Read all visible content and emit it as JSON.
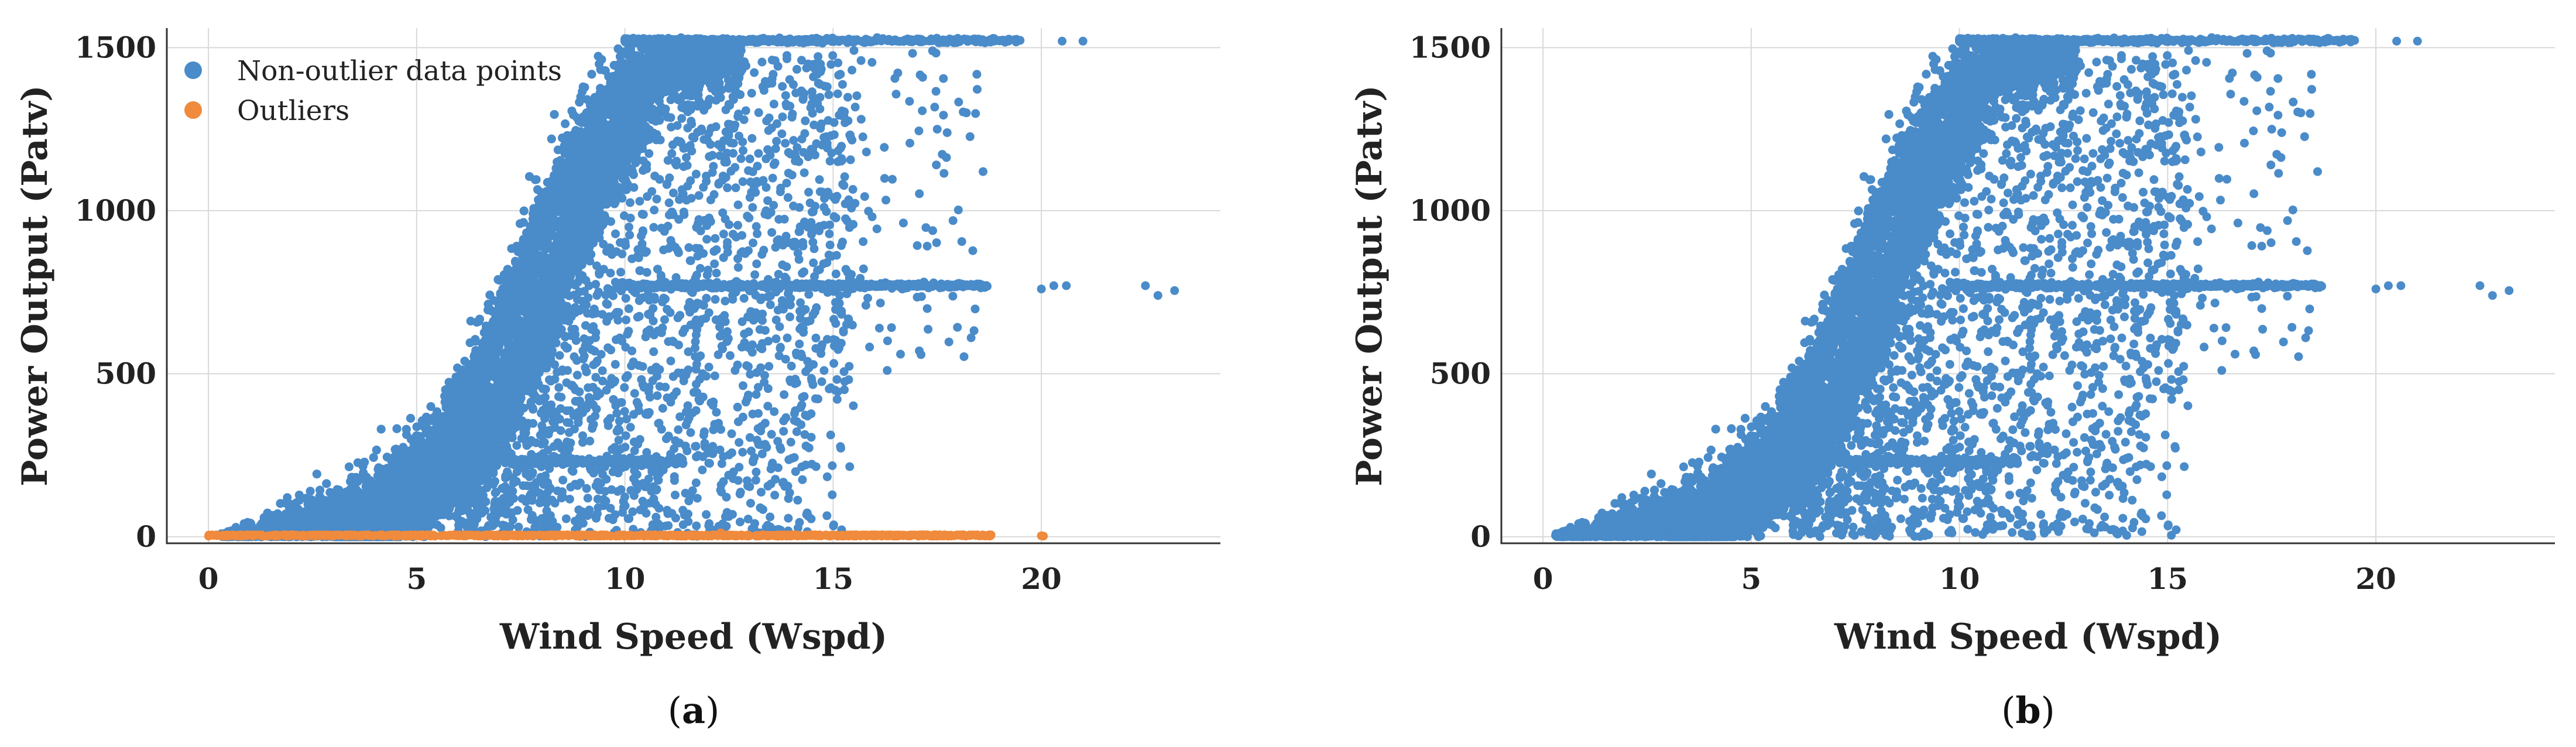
{
  "chart_data": [
    {
      "type": "scatter",
      "panel_label": "a",
      "xlabel": "Wind Speed (Wspd)",
      "ylabel": "Power Output (Patv)",
      "xlim": [
        -1,
        24.3
      ],
      "ylim": [
        -20,
        1560
      ],
      "x_ticks": [
        "0",
        "5",
        "10",
        "15",
        "20"
      ],
      "y_ticks": [
        "0",
        "500",
        "1000",
        "1500"
      ],
      "grid": true,
      "legend_position": "top-left",
      "series": [
        {
          "name": "Non-outlier data points",
          "color": "#4a8bc9",
          "description_points": [
            [
              0,
              0
            ],
            [
              1.2,
              5
            ],
            [
              2,
              60
            ],
            [
              3,
              150
            ],
            [
              4,
              280
            ],
            [
              5,
              420
            ],
            [
              6,
              620
            ],
            [
              7,
              850
            ],
            [
              8,
              1080
            ],
            [
              9,
              1300
            ],
            [
              10,
              1450
            ],
            [
              11,
              1510
            ],
            [
              12,
              1520
            ],
            [
              13,
              1525
            ],
            [
              15,
              1520
            ],
            [
              17,
              1520
            ],
            [
              19,
              1520
            ],
            [
              21,
              1520
            ],
            [
              11,
              770
            ],
            [
              13,
              770
            ],
            [
              15,
              770
            ],
            [
              17,
              770
            ],
            [
              18.5,
              770
            ],
            [
              20,
              760
            ],
            [
              22.5,
              770
            ],
            [
              22.8,
              740
            ],
            [
              23.2,
              755
            ],
            [
              10,
              230
            ],
            [
              12,
              230
            ],
            [
              11,
              600
            ],
            [
              13,
              1000
            ],
            [
              14,
              400
            ],
            [
              15,
              560
            ],
            [
              16,
              510
            ]
          ]
        },
        {
          "name": "Outliers",
          "color": "#f08a3c",
          "description_points": [
            [
              0,
              2
            ],
            [
              3,
              2
            ],
            [
              6,
              2
            ],
            [
              9,
              3
            ],
            [
              12,
              3
            ],
            [
              15,
              3
            ],
            [
              17,
              3
            ],
            [
              18.8,
              2
            ],
            [
              20,
              3
            ]
          ]
        }
      ]
    },
    {
      "type": "scatter",
      "panel_label": "b",
      "xlabel": "Wind Speed (Wspd)",
      "ylabel": "Power Output (Patv)",
      "xlim": [
        -1,
        24.3
      ],
      "ylim": [
        -20,
        1560
      ],
      "x_ticks": [
        "0",
        "5",
        "10",
        "15",
        "20"
      ],
      "y_ticks": [
        "0",
        "500",
        "1000",
        "1500"
      ],
      "grid": true,
      "series": [
        {
          "name": "",
          "color": "#4a8bc9",
          "description_points": [
            [
              0,
              0
            ],
            [
              1.2,
              5
            ],
            [
              2,
              60
            ],
            [
              3,
              150
            ],
            [
              4,
              280
            ],
            [
              5,
              420
            ],
            [
              6,
              620
            ],
            [
              7,
              850
            ],
            [
              8,
              1080
            ],
            [
              9,
              1300
            ],
            [
              10,
              1450
            ],
            [
              11,
              1510
            ],
            [
              12,
              1520
            ],
            [
              13,
              1525
            ],
            [
              15,
              1520
            ],
            [
              17,
              1520
            ],
            [
              19,
              1520
            ],
            [
              21,
              1520
            ],
            [
              11,
              770
            ],
            [
              13,
              770
            ],
            [
              15,
              770
            ],
            [
              17,
              770
            ],
            [
              18.5,
              770
            ],
            [
              20,
              760
            ],
            [
              22.5,
              770
            ],
            [
              22.8,
              740
            ],
            [
              23.2,
              755
            ],
            [
              10,
              230
            ],
            [
              12,
              230
            ],
            [
              11,
              600
            ],
            [
              13,
              1000
            ],
            [
              14,
              400
            ],
            [
              15,
              560
            ],
            [
              16,
              510
            ]
          ]
        }
      ]
    }
  ]
}
